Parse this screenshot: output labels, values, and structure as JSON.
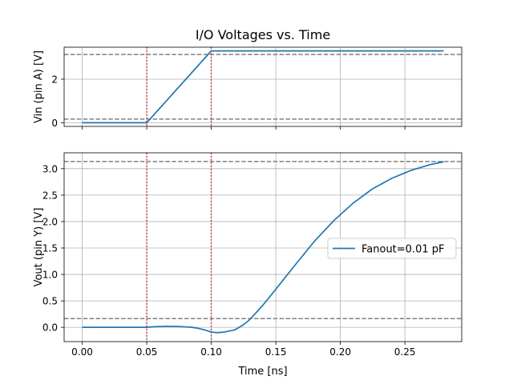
{
  "chart_data": [
    {
      "type": "line",
      "title": "I/O Voltages vs. Time",
      "xlabel": "",
      "ylabel": "Vin (pin A) [V]",
      "xlim": [
        -0.014,
        0.294
      ],
      "ylim": [
        -0.17,
        3.47
      ],
      "xticks": [
        0.0,
        0.05,
        0.1,
        0.15,
        0.2,
        0.25
      ],
      "yticks": [
        0,
        2
      ],
      "ytick_labels": [
        "0",
        "2"
      ],
      "grid": true,
      "hlines": [
        {
          "y": 0.165,
          "color": "#808080",
          "style": "dashed"
        },
        {
          "y": 3.135,
          "color": "#808080",
          "style": "dashed"
        }
      ],
      "vlines": [
        {
          "x": 0.05,
          "color": "#d62728",
          "style": "dotted"
        },
        {
          "x": 0.1,
          "color": "#d62728",
          "style": "dotted"
        }
      ],
      "series": [
        {
          "name": "",
          "color": "#1f77b4",
          "x": [
            0.0,
            0.05,
            0.1,
            0.28
          ],
          "y": [
            0.0,
            0.0,
            3.3,
            3.3
          ]
        }
      ]
    },
    {
      "type": "line",
      "title": "",
      "xlabel": "Time [ns]",
      "ylabel": "Vout (pin Y) [V]",
      "xlim": [
        -0.014,
        0.294
      ],
      "ylim": [
        -0.27,
        3.3
      ],
      "xticks": [
        0.0,
        0.05,
        0.1,
        0.15,
        0.2,
        0.25
      ],
      "xtick_labels": [
        "0.00",
        "0.05",
        "0.10",
        "0.15",
        "0.20",
        "0.25"
      ],
      "yticks": [
        0.0,
        0.5,
        1.0,
        1.5,
        2.0,
        2.5,
        3.0
      ],
      "ytick_labels": [
        "0.0",
        "0.5",
        "1.0",
        "1.5",
        "2.0",
        "2.5",
        "3.0"
      ],
      "grid": true,
      "legend": "right",
      "hlines": [
        {
          "y": 0.165,
          "color": "#808080",
          "style": "dashed"
        },
        {
          "y": 3.135,
          "color": "#808080",
          "style": "dashed"
        }
      ],
      "vlines": [
        {
          "x": 0.05,
          "color": "#d62728",
          "style": "dotted"
        },
        {
          "x": 0.1,
          "color": "#d62728",
          "style": "dotted"
        }
      ],
      "series": [
        {
          "name": "Fanout=0.01 pF",
          "color": "#1f77b4",
          "x": [
            0.0,
            0.05,
            0.055,
            0.065,
            0.075,
            0.085,
            0.09,
            0.095,
            0.1,
            0.105,
            0.11,
            0.118,
            0.125,
            0.13,
            0.14,
            0.15,
            0.165,
            0.18,
            0.195,
            0.21,
            0.225,
            0.24,
            0.255,
            0.27,
            0.28
          ],
          "y": [
            0.0,
            0.0,
            0.01,
            0.02,
            0.015,
            0.0,
            -0.02,
            -0.05,
            -0.09,
            -0.1,
            -0.09,
            -0.05,
            0.05,
            0.15,
            0.42,
            0.72,
            1.18,
            1.63,
            2.02,
            2.35,
            2.62,
            2.82,
            2.97,
            3.08,
            3.13
          ]
        }
      ]
    }
  ]
}
